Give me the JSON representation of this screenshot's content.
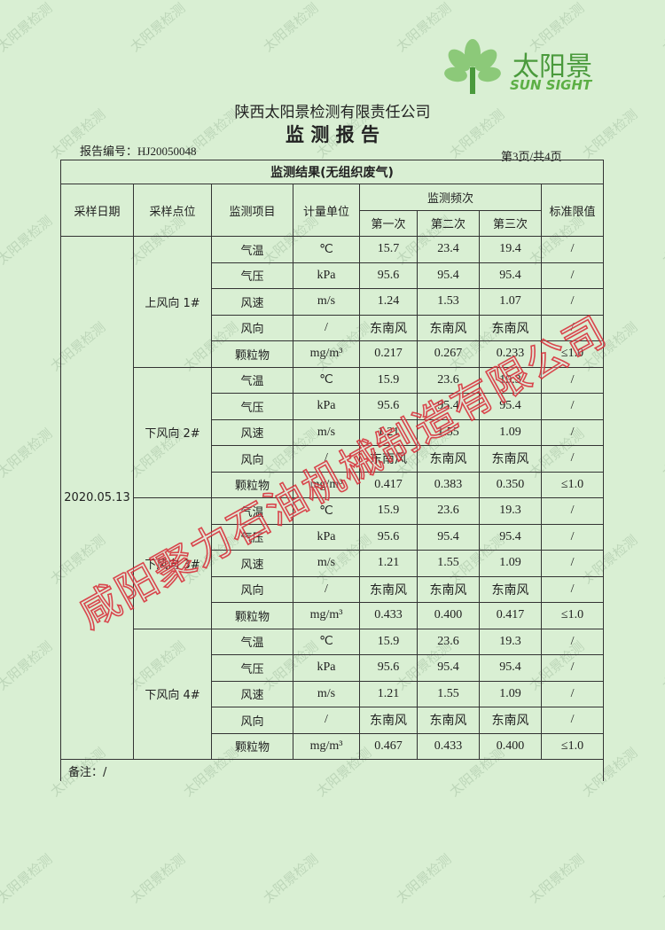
{
  "logo": {
    "name": "太阳景",
    "english": "SUN SIGHT"
  },
  "header": {
    "company": "陕西太阳景检测有限责任公司",
    "title": "监 测 报 告",
    "report_no": "报告编号：HJ20050048",
    "page": "第3页/共4页"
  },
  "table": {
    "caption": "监测结果(无组织废气)",
    "headers": {
      "date": "采样日期",
      "point": "采样点位",
      "item": "监测项目",
      "unit": "计量单位",
      "frequency": "监测频次",
      "runs": [
        "第一次",
        "第二次",
        "第三次"
      ],
      "limit": "标准限值"
    },
    "date": "2020.05.13",
    "groups": [
      {
        "point": "上风向 1#",
        "rows": [
          [
            "气温",
            "℃",
            "15.7",
            "23.4",
            "19.4",
            "/"
          ],
          [
            "气压",
            "kPa",
            "95.6",
            "95.4",
            "95.4",
            "/"
          ],
          [
            "风速",
            "m/s",
            "1.24",
            "1.53",
            "1.07",
            "/"
          ],
          [
            "风向",
            "/",
            "东南风",
            "东南风",
            "东南风",
            "/"
          ],
          [
            "颗粒物",
            "mg/m³",
            "0.217",
            "0.267",
            "0.233",
            "≤1.0"
          ]
        ]
      },
      {
        "point": "下风向 2#",
        "rows": [
          [
            "气温",
            "℃",
            "15.9",
            "23.6",
            "19.3",
            "/"
          ],
          [
            "气压",
            "kPa",
            "95.6",
            "95.4",
            "95.4",
            "/"
          ],
          [
            "风速",
            "m/s",
            "1.21",
            "1.55",
            "1.09",
            "/"
          ],
          [
            "风向",
            "/",
            "东南风",
            "东南风",
            "东南风",
            "/"
          ],
          [
            "颗粒物",
            "mg/m³",
            "0.417",
            "0.383",
            "0.350",
            "≤1.0"
          ]
        ]
      },
      {
        "point": "下风向 3#",
        "rows": [
          [
            "气温",
            "℃",
            "15.9",
            "23.6",
            "19.3",
            "/"
          ],
          [
            "气压",
            "kPa",
            "95.6",
            "95.4",
            "95.4",
            "/"
          ],
          [
            "风速",
            "m/s",
            "1.21",
            "1.55",
            "1.09",
            "/"
          ],
          [
            "风向",
            "/",
            "东南风",
            "东南风",
            "东南风",
            "/"
          ],
          [
            "颗粒物",
            "mg/m³",
            "0.433",
            "0.400",
            "0.417",
            "≤1.0"
          ]
        ]
      },
      {
        "point": "下风向 4#",
        "rows": [
          [
            "气温",
            "℃",
            "15.9",
            "23.6",
            "19.3",
            "/"
          ],
          [
            "气压",
            "kPa",
            "95.6",
            "95.4",
            "95.4",
            "/"
          ],
          [
            "风速",
            "m/s",
            "1.21",
            "1.55",
            "1.09",
            "/"
          ],
          [
            "风向",
            "/",
            "东南风",
            "东南风",
            "东南风",
            "/"
          ],
          [
            "颗粒物",
            "mg/m³",
            "0.467",
            "0.433",
            "0.400",
            "≤1.0"
          ]
        ]
      }
    ],
    "note": "备注：/"
  },
  "stamp": "咸阳聚力石油机械制造有限公司",
  "watermark": "太阳景检测"
}
